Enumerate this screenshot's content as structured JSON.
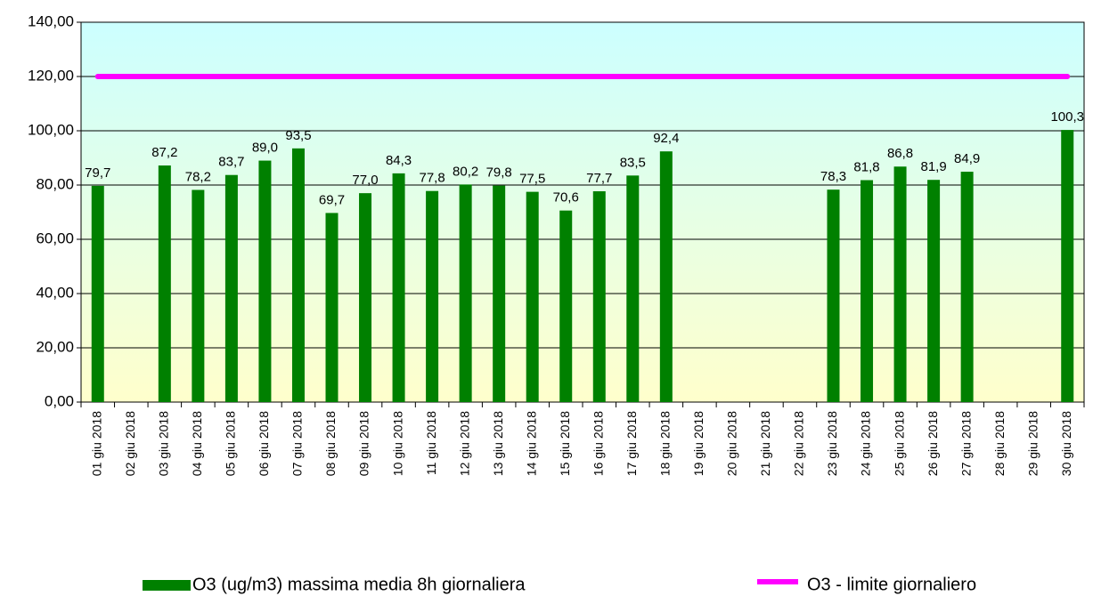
{
  "chart_data": {
    "type": "bar",
    "categories": [
      "01 giu 2018",
      "02 giu 2018",
      "03 giu 2018",
      "04 giu 2018",
      "05 giu 2018",
      "06 giu 2018",
      "07 giu 2018",
      "08 giu 2018",
      "09 giu 2018",
      "10 giu 2018",
      "11 giu 2018",
      "12 giu 2018",
      "13 giu 2018",
      "14 giu 2018",
      "15 giu 2018",
      "16 giu 2018",
      "17 giu 2018",
      "18 giu 2018",
      "19 giu 2018",
      "20 giu 2018",
      "21 giu 2018",
      "22 giu 2018",
      "23 giu 2018",
      "24 giu 2018",
      "25 giu 2018",
      "26 giu 2018",
      "27 giu 2018",
      "28 giu 2018",
      "29 giu 2018",
      "30 giu 2018"
    ],
    "series": [
      {
        "name": "O3 (ug/m3) massima media 8h giornaliera",
        "type": "bar",
        "color": "#008000",
        "values": [
          79.7,
          null,
          87.2,
          78.2,
          83.7,
          89.0,
          93.5,
          69.7,
          77.0,
          84.3,
          77.8,
          80.2,
          79.8,
          77.5,
          70.6,
          77.7,
          83.5,
          92.4,
          null,
          null,
          null,
          null,
          78.3,
          81.8,
          86.8,
          81.9,
          84.9,
          null,
          null,
          100.3
        ],
        "value_labels": [
          "79,7",
          null,
          "87,2",
          "78,2",
          "83,7",
          "89,0",
          "93,5",
          "69,7",
          "77,0",
          "84,3",
          "77,8",
          "80,2",
          "79,8",
          "77,5",
          "70,6",
          "77,7",
          "83,5",
          "92,4",
          null,
          null,
          null,
          null,
          "78,3",
          "81,8",
          "86,8",
          "81,9",
          "84,9",
          null,
          null,
          "100,3"
        ]
      },
      {
        "name": "O3 - limite giornaliero",
        "type": "line",
        "color": "#ff00ff",
        "values": [
          120,
          120,
          120,
          120,
          120,
          120,
          120,
          120,
          120,
          120,
          120,
          120,
          120,
          120,
          120,
          120,
          120,
          120,
          120,
          120,
          120,
          120,
          120,
          120,
          120,
          120,
          120,
          120,
          120,
          120
        ]
      }
    ],
    "ylim": [
      0,
      140
    ],
    "yticks": [
      {
        "value": 0,
        "label": "0,00"
      },
      {
        "value": 20,
        "label": "20,00"
      },
      {
        "value": 40,
        "label": "40,00"
      },
      {
        "value": 60,
        "label": "60,00"
      },
      {
        "value": 80,
        "label": "80,00"
      },
      {
        "value": 100,
        "label": "100,00"
      },
      {
        "value": 120,
        "label": "120,00"
      },
      {
        "value": 140,
        "label": "140,00"
      }
    ],
    "grid": true,
    "legend": "bottom"
  }
}
